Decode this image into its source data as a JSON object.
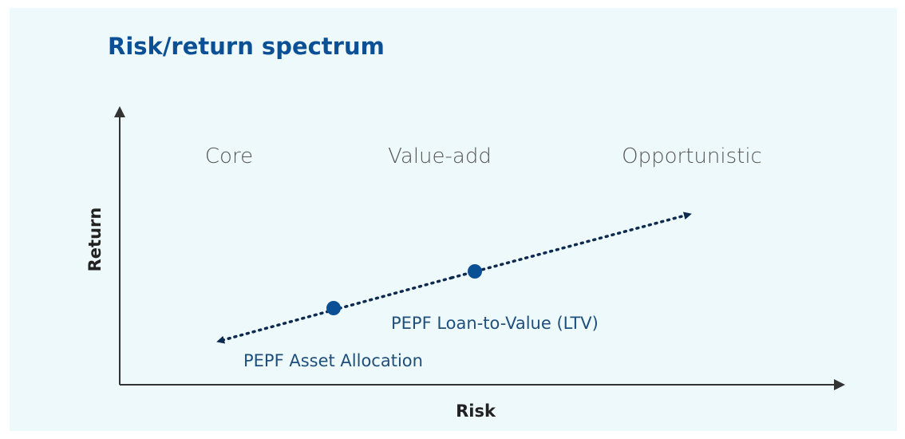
{
  "title": "Risk/return spectrum",
  "axes": {
    "x": "Risk",
    "y": "Return"
  },
  "categories": [
    "Core",
    "Value-add",
    "Opportunistic"
  ],
  "points": [
    {
      "label": "PEPF Asset Allocation"
    },
    {
      "label": "PEPF Loan-to-Value (LTV)"
    }
  ]
}
